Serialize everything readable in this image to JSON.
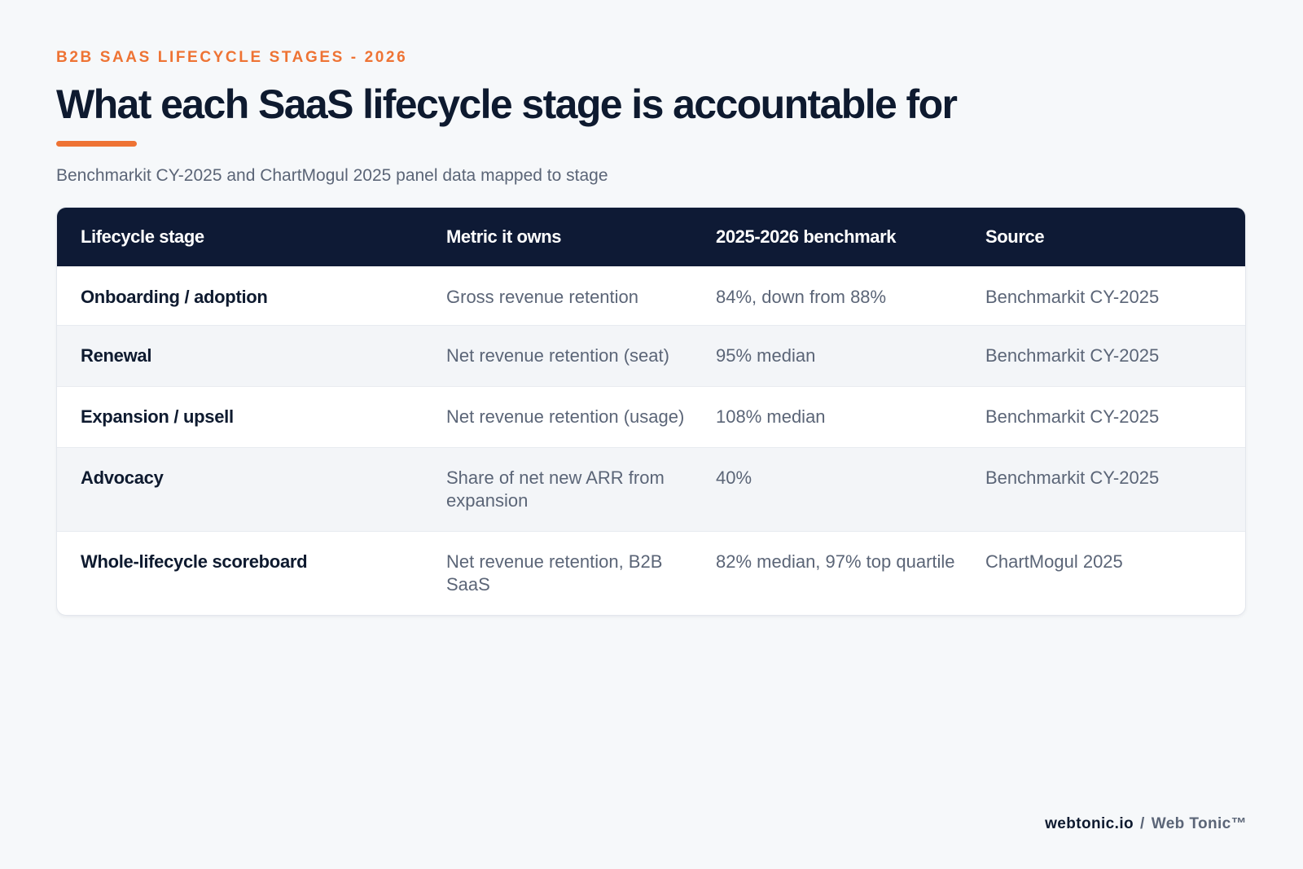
{
  "header": {
    "eyebrow": "B2B SAAS LIFECYCLE STAGES - 2026",
    "title": "What each SaaS lifecycle stage is accountable for",
    "subtitle": "Benchmarkit CY-2025 and ChartMogul 2025 panel data mapped to stage"
  },
  "colors": {
    "accent": "#ee7334",
    "header_bg": "#0e1a35",
    "text_dark": "#0e1a2f",
    "text_muted": "#5b6577",
    "page_bg": "#f6f8fa"
  },
  "table": {
    "columns": [
      "Lifecycle stage",
      "Metric it owns",
      "2025-2026 benchmark",
      "Source"
    ],
    "rows": [
      [
        "Onboarding / adoption",
        "Gross revenue retention",
        "84%, down from 88%",
        "Benchmarkit CY-2025"
      ],
      [
        "Renewal",
        "Net revenue retention (seat)",
        "95% median",
        "Benchmarkit CY-2025"
      ],
      [
        "Expansion / upsell",
        "Net revenue retention (usage)",
        "108% median",
        "Benchmarkit CY-2025"
      ],
      [
        "Advocacy",
        "Share of net new ARR from expansion",
        "40%",
        "Benchmarkit CY-2025"
      ],
      [
        "Whole-lifecycle scoreboard",
        "Net revenue retention, B2B SaaS",
        "82% median, 97% top quartile",
        "ChartMogul 2025"
      ]
    ]
  },
  "footer": {
    "domain": "webtonic.io",
    "separator": "/",
    "brand": "Web Tonic™"
  }
}
